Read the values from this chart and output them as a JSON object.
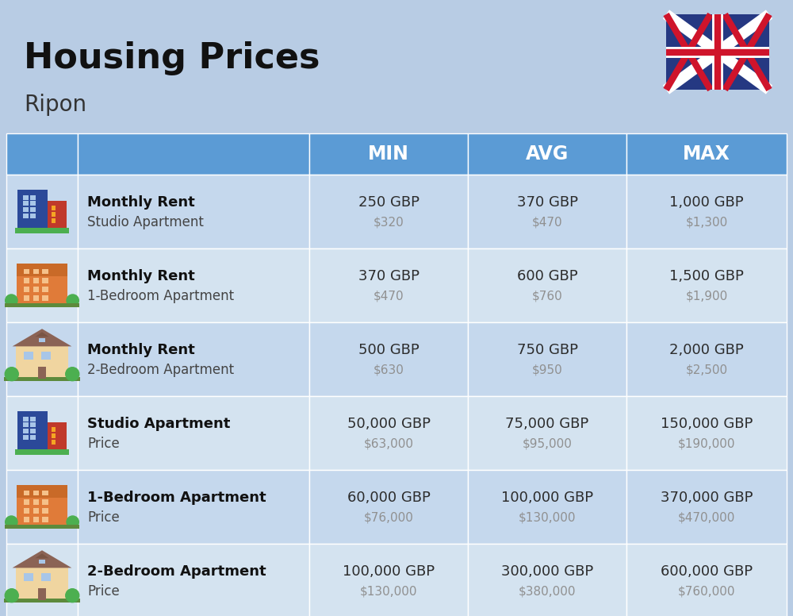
{
  "title": "Housing Prices",
  "subtitle": "Ripon",
  "background_color": "#b8cce4",
  "header_color": "#5b9bd5",
  "header_text_color": "#ffffff",
  "row_colors": [
    "#c5d8ed",
    "#d4e3f0"
  ],
  "col_headers": [
    "MIN",
    "AVG",
    "MAX"
  ],
  "rows": [
    {
      "bold_label": "Monthly Rent",
      "sub_label": "Studio Apartment",
      "min_gbp": "250 GBP",
      "min_usd": "$320",
      "avg_gbp": "370 GBP",
      "avg_usd": "$470",
      "max_gbp": "1,000 GBP",
      "max_usd": "$1,300",
      "icon_type": "studio_blue"
    },
    {
      "bold_label": "Monthly Rent",
      "sub_label": "1-Bedroom Apartment",
      "min_gbp": "370 GBP",
      "min_usd": "$470",
      "avg_gbp": "600 GBP",
      "avg_usd": "$760",
      "max_gbp": "1,500 GBP",
      "max_usd": "$1,900",
      "icon_type": "one_bed_orange"
    },
    {
      "bold_label": "Monthly Rent",
      "sub_label": "2-Bedroom Apartment",
      "min_gbp": "500 GBP",
      "min_usd": "$630",
      "avg_gbp": "750 GBP",
      "avg_usd": "$950",
      "max_gbp": "2,000 GBP",
      "max_usd": "$2,500",
      "icon_type": "two_bed_house"
    },
    {
      "bold_label": "Studio Apartment",
      "sub_label": "Price",
      "min_gbp": "50,000 GBP",
      "min_usd": "$63,000",
      "avg_gbp": "75,000 GBP",
      "avg_usd": "$95,000",
      "max_gbp": "150,000 GBP",
      "max_usd": "$190,000",
      "icon_type": "studio_blue"
    },
    {
      "bold_label": "1-Bedroom Apartment",
      "sub_label": "Price",
      "min_gbp": "60,000 GBP",
      "min_usd": "$76,000",
      "avg_gbp": "100,000 GBP",
      "avg_usd": "$130,000",
      "max_gbp": "370,000 GBP",
      "max_usd": "$470,000",
      "icon_type": "one_bed_orange"
    },
    {
      "bold_label": "2-Bedroom Apartment",
      "sub_label": "Price",
      "min_gbp": "100,000 GBP",
      "min_usd": "$130,000",
      "avg_gbp": "300,000 GBP",
      "avg_usd": "$380,000",
      "max_gbp": "600,000 GBP",
      "max_usd": "$760,000",
      "icon_type": "two_bed_house"
    }
  ],
  "cell_text_color": "#2c2c2c",
  "cell_usd_color": "#909090",
  "label_bold_color": "#111111",
  "label_sub_color": "#444444",
  "fig_width": 10.0,
  "fig_height": 7.76,
  "dpi": 100
}
